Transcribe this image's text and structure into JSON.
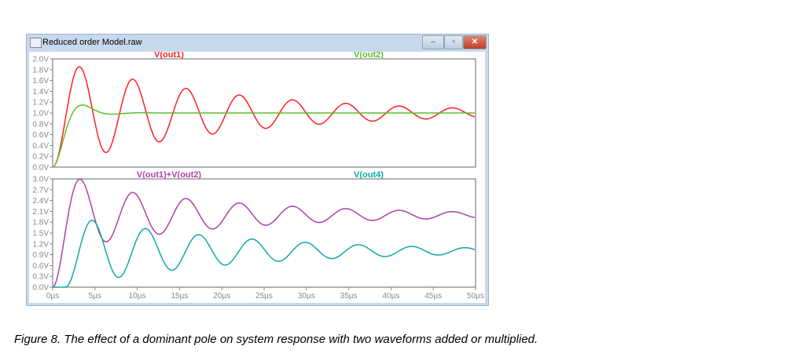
{
  "window": {
    "title": "Reduced order Model.raw",
    "minimize": "–",
    "maximize": "▫",
    "close": "✕"
  },
  "caption": "Figure 8. The effect of a dominant pole on system response with two waveforms added or multiplied.",
  "chart_data": [
    {
      "type": "line",
      "title": "",
      "xlabel": "",
      "ylabel": "",
      "xlim": [
        0,
        50
      ],
      "ylim": [
        0,
        2.0
      ],
      "yticks": [
        "0.0V",
        "0.2V",
        "0.4V",
        "0.6V",
        "0.8V",
        "1.0V",
        "1.2V",
        "1.4V",
        "1.6V",
        "1.8V",
        "2.0V"
      ],
      "series": [
        {
          "name": "V(out1)",
          "color": "#ff2020",
          "peak": 1.85,
          "peak_time_us": 3.2,
          "period_us": 6.3,
          "final": 1.0
        },
        {
          "name": "V(out2)",
          "color": "#5cbf2a",
          "peak": 1.15,
          "peak_time_us": 3.5,
          "final": 1.0
        }
      ]
    },
    {
      "type": "line",
      "xlabel": "",
      "ylabel": "",
      "xlim": [
        0,
        50
      ],
      "ylim": [
        0,
        3.0
      ],
      "yticks": [
        "0.0V",
        "0.3V",
        "0.6V",
        "0.9V",
        "1.2V",
        "1.5V",
        "1.8V",
        "2.1V",
        "2.4V",
        "2.7V",
        "3.0V"
      ],
      "xticks": [
        "0µs",
        "5µs",
        "10µs",
        "15µs",
        "20µs",
        "25µs",
        "30µs",
        "35µs",
        "40µs",
        "45µs",
        "50µs"
      ],
      "series": [
        {
          "name": "V(out1)+V(out2)",
          "color": "#b040a8",
          "peak": 3.0,
          "peak_time_us": 3.2
        },
        {
          "name": "V(out4)",
          "color": "#10a8a8",
          "peak": 1.9,
          "peak_time_us": 4.7
        }
      ]
    }
  ]
}
